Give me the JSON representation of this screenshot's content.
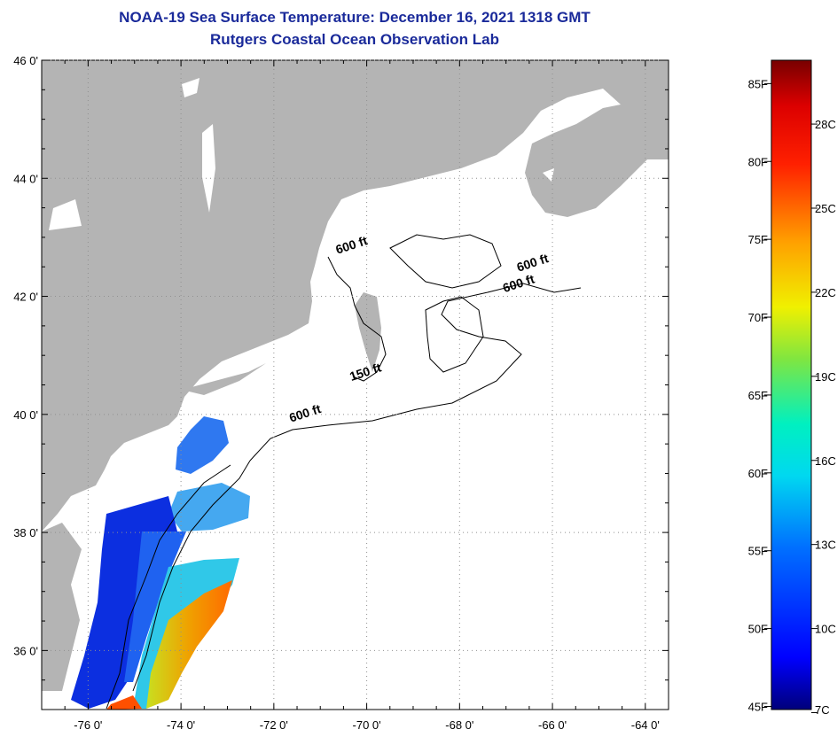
{
  "title": {
    "line1": "NOAA-19 Sea Surface Temperature:  December 16, 2021 1318 GMT",
    "line2": "Rutgers Coastal Ocean Observation Lab"
  },
  "map": {
    "lat_labels": [
      {
        "value": 46,
        "label": "46 0'"
      },
      {
        "value": 44,
        "label": "44 0'"
      },
      {
        "value": 42,
        "label": "42 0'"
      },
      {
        "value": 40,
        "label": "40 0'"
      },
      {
        "value": 38,
        "label": "38 0'"
      },
      {
        "value": 36,
        "label": "36 0'"
      }
    ],
    "lon_labels": [
      {
        "value": -76,
        "label": "-76 0'"
      },
      {
        "value": -74,
        "label": "-74 0'"
      },
      {
        "value": -72,
        "label": "-72 0'"
      },
      {
        "value": -70,
        "label": "-70 0'"
      },
      {
        "value": -68,
        "label": "-68 0'"
      },
      {
        "value": -66,
        "label": "-66 0'"
      },
      {
        "value": -64,
        "label": "-64 0'"
      }
    ],
    "depth_labels": [
      {
        "label": "600 ft",
        "lon": -70.3,
        "lat": 42.8
      },
      {
        "label": "600 ft",
        "lon": -66.4,
        "lat": 42.5
      },
      {
        "label": "600 ft",
        "lon": -66.7,
        "lat": 42.15
      },
      {
        "label": "150 ft",
        "lon": -70.0,
        "lat": 40.65
      },
      {
        "label": "600 ft",
        "lon": -71.3,
        "lat": 39.95
      }
    ],
    "colors": {
      "land": "#b4b4b4",
      "ocean": "#ffffff",
      "grid": "#909090"
    }
  },
  "colorbar": {
    "f_labels": [
      {
        "value": 85,
        "label": "85F"
      },
      {
        "value": 80,
        "label": "80F"
      },
      {
        "value": 75,
        "label": "75F"
      },
      {
        "value": 70,
        "label": "70F"
      },
      {
        "value": 65,
        "label": "65F"
      },
      {
        "value": 60,
        "label": "60F"
      },
      {
        "value": 55,
        "label": "55F"
      },
      {
        "value": 50,
        "label": "50F"
      },
      {
        "value": 45,
        "label": "45F"
      }
    ],
    "c_labels": [
      {
        "value": 28,
        "label": "28C"
      },
      {
        "value": 25,
        "label": "25C"
      },
      {
        "value": 22,
        "label": "22C"
      },
      {
        "value": 19,
        "label": "19C"
      },
      {
        "value": 16,
        "label": "16C"
      },
      {
        "value": 13,
        "label": "13C"
      },
      {
        "value": 10,
        "label": "10C"
      },
      {
        "value": 7,
        "label": "7C"
      }
    ]
  }
}
